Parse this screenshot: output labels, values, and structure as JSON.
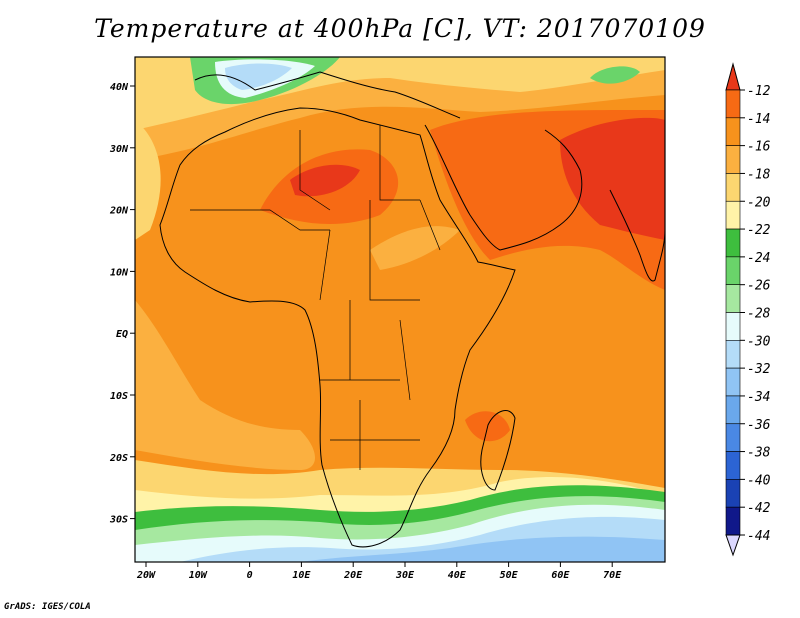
{
  "title": "Temperature at 400hPa [C], VT: 2017070109",
  "credit": "GrADS: IGES/COLA",
  "map": {
    "lon_labels": [
      "20W",
      "10W",
      "0",
      "10E",
      "20E",
      "30E",
      "40E",
      "50E",
      "60E",
      "70E"
    ],
    "lat_labels": [
      "40N",
      "30N",
      "20N",
      "10N",
      "EQ",
      "10S",
      "20S",
      "30S"
    ]
  },
  "colorbar": {
    "levels": [
      "-12",
      "-14",
      "-16",
      "-18",
      "-20",
      "-22",
      "-24",
      "-26",
      "-28",
      "-30",
      "-32",
      "-34",
      "-36",
      "-38",
      "-40",
      "-42",
      "-44"
    ],
    "colors": [
      "#e8381a",
      "#f76a14",
      "#f7921c",
      "#fbb040",
      "#fcd670",
      "#fff3a8",
      "#3ebe3e",
      "#6ad46a",
      "#a6e8a0",
      "#e6fbfb",
      "#b4dcf8",
      "#90c4f4",
      "#6aa8ec",
      "#4a88e4",
      "#2c64d4",
      "#1a42b4",
      "#10188a"
    ],
    "top_color": "#e8381a",
    "bottom_color": "#dcd8ff"
  }
}
